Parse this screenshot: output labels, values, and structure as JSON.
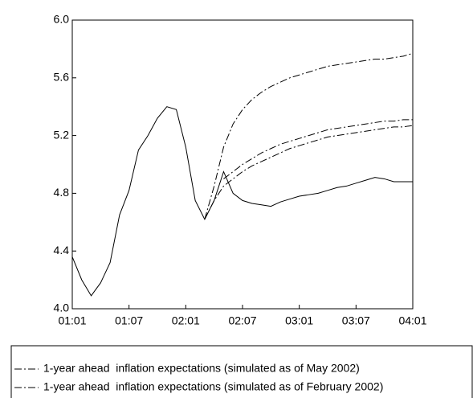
{
  "chart_data": {
    "type": "line",
    "categories": [
      "01:01",
      null,
      null,
      null,
      null,
      null,
      "01:07",
      null,
      null,
      null,
      null,
      null,
      "02:01",
      null,
      null,
      null,
      null,
      null,
      "02:07",
      null,
      null,
      null,
      null,
      null,
      "03:01",
      null,
      null,
      null,
      null,
      null,
      "03:07",
      null,
      null,
      null,
      null,
      null,
      "04:01"
    ],
    "series": [
      {
        "color": "#000000",
        "style": "solid",
        "values": [
          4.36,
          4.2,
          4.09,
          4.18,
          4.32,
          4.65,
          4.82,
          5.1,
          5.2,
          5.32,
          5.4,
          5.38,
          5.12,
          4.75,
          4.62,
          4.75,
          4.95,
          4.8,
          4.75,
          4.73,
          4.72,
          4.71,
          4.74,
          4.76,
          4.78,
          4.79,
          4.8,
          4.82,
          4.84,
          4.85,
          4.87,
          4.89,
          4.91,
          4.9,
          4.88,
          4.88,
          4.88
        ]
      },
      {
        "color": "#000000",
        "style": "dashed",
        "values": [
          null,
          null,
          null,
          null,
          null,
          null,
          null,
          null,
          null,
          null,
          null,
          null,
          null,
          null,
          4.62,
          4.85,
          5.12,
          5.28,
          5.38,
          5.45,
          5.5,
          5.54,
          5.57,
          5.6,
          5.62,
          5.64,
          5.66,
          5.68,
          5.69,
          5.7,
          5.71,
          5.72,
          5.73,
          5.73,
          5.74,
          5.75,
          5.77
        ]
      },
      {
        "name": "1-year ahead  inflation expectations (simulated as of May 2002)",
        "color": "#000000",
        "style": "dashed",
        "values": [
          null,
          null,
          null,
          null,
          null,
          null,
          null,
          null,
          null,
          null,
          null,
          null,
          null,
          null,
          null,
          null,
          4.9,
          4.95,
          5.0,
          5.04,
          5.08,
          5.11,
          5.14,
          5.16,
          5.18,
          5.2,
          5.22,
          5.24,
          5.25,
          5.26,
          5.27,
          5.28,
          5.29,
          5.3,
          5.3,
          5.31,
          5.31
        ]
      },
      {
        "name": "1-year ahead  inflation expectations (simulated as of February 2002)",
        "color": "#000000",
        "style": "dashed",
        "values": [
          null,
          null,
          null,
          null,
          null,
          null,
          null,
          null,
          null,
          null,
          null,
          null,
          null,
          null,
          4.62,
          4.75,
          4.85,
          4.9,
          4.95,
          4.99,
          5.02,
          5.05,
          5.08,
          5.11,
          5.13,
          5.15,
          5.17,
          5.19,
          5.2,
          5.21,
          5.22,
          5.23,
          5.24,
          5.25,
          5.26,
          5.26,
          5.27
        ]
      }
    ],
    "ylim": [
      4.0,
      6.0
    ],
    "yticks": [
      {
        "value": 4.0,
        "label": "4.0"
      },
      4.4,
      4.8,
      5.2,
      5.6,
      {
        "value": 6.0,
        "label": "6.0"
      }
    ],
    "grid": false
  }
}
